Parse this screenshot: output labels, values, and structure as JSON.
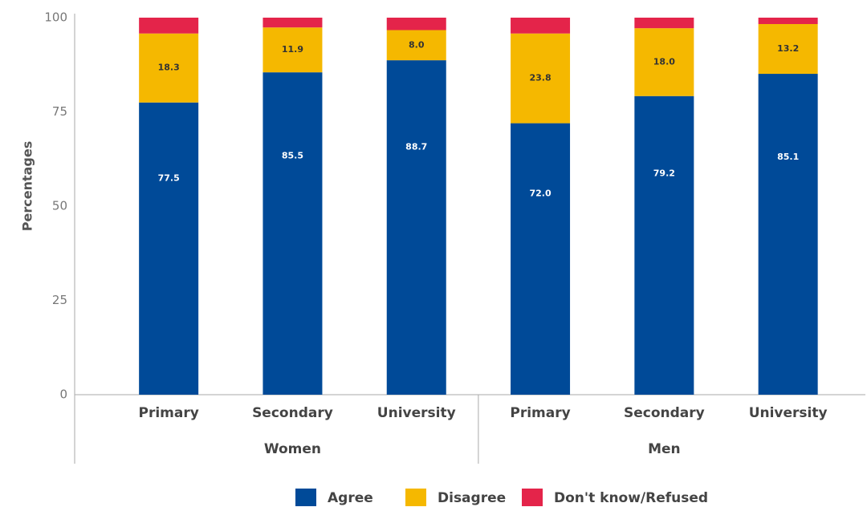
{
  "chart_data": {
    "type": "stacked_bar",
    "y_label": "Percentages",
    "groups": [
      {
        "name": "Women",
        "categories": [
          "Primary",
          "Secondary",
          "University"
        ]
      },
      {
        "name": "Men",
        "categories": [
          "Primary",
          "Secondary",
          "University"
        ]
      }
    ],
    "series": [
      {
        "name": "Agree",
        "color": "#004a98",
        "values": [
          77.5,
          85.5,
          88.7,
          72.0,
          79.2,
          85.1
        ],
        "value_labels": [
          "77.5",
          "85.5",
          "88.7",
          "72.0",
          "79.2",
          "85.1"
        ]
      },
      {
        "name": "Disagree",
        "color": "#f5b800",
        "values": [
          18.3,
          11.9,
          8.0,
          23.8,
          18.0,
          13.2
        ],
        "value_labels": [
          "18.3",
          "11.9",
          "8.0",
          "23.8",
          "18.0",
          "13.2"
        ]
      },
      {
        "name": "Don't know/Refused",
        "color": "#e4244a",
        "values": [
          4.2,
          2.6,
          3.3,
          4.2,
          2.8,
          1.7
        ]
      }
    ],
    "ylim": [
      0,
      100
    ],
    "yticks": [
      0,
      25,
      50,
      75,
      100
    ],
    "grid": false,
    "legend": "bottom"
  }
}
